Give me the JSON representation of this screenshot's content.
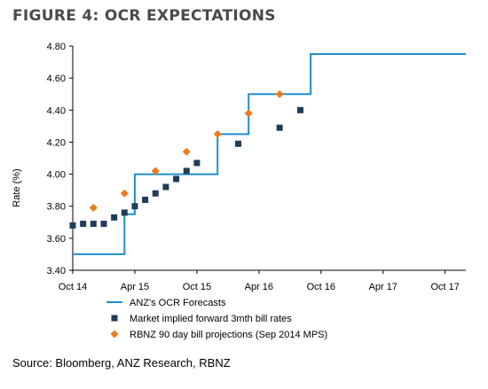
{
  "figure_title": "FIGURE 4: OCR EXPECTATIONS",
  "source": "Source: Bloomberg, ANZ Research, RBNZ",
  "colors": {
    "ocr": "#1f8ed0",
    "market": "#1f3c5a",
    "rbnz": "#e87c1e",
    "axis": "#000000"
  },
  "chart_data": {
    "type": "line",
    "title": "",
    "xlabel": "",
    "ylabel": "Rate (%)",
    "ylim": [
      3.4,
      4.8
    ],
    "yticks": [
      "3.40",
      "3.60",
      "3.80",
      "4.00",
      "4.20",
      "4.40",
      "4.60",
      "4.80"
    ],
    "xlim": [
      "2014-10",
      "2017-12"
    ],
    "xticks": [
      {
        "date": "2014-10",
        "label": "Oct 14"
      },
      {
        "date": "2015-04",
        "label": "Apr 15"
      },
      {
        "date": "2015-10",
        "label": "Oct 15"
      },
      {
        "date": "2016-04",
        "label": "Apr 16"
      },
      {
        "date": "2016-10",
        "label": "Oct 16"
      },
      {
        "date": "2017-04",
        "label": "Apr 17"
      },
      {
        "date": "2017-10",
        "label": "Oct 17"
      }
    ],
    "grid": false,
    "legend_position": "bottom",
    "series": [
      {
        "name": "ANZ's OCR Forecasts",
        "kind": "step",
        "points": [
          [
            "2014-10",
            3.5
          ],
          [
            "2015-03",
            3.5
          ],
          [
            "2015-03",
            3.75
          ],
          [
            "2015-04",
            3.75
          ],
          [
            "2015-04",
            4.0
          ],
          [
            "2015-12",
            4.0
          ],
          [
            "2015-12",
            4.25
          ],
          [
            "2016-03",
            4.25
          ],
          [
            "2016-03",
            4.5
          ],
          [
            "2016-09",
            4.5
          ],
          [
            "2016-09",
            4.75
          ],
          [
            "2017-12",
            4.75
          ]
        ]
      },
      {
        "name": "Market implied forward 3mth bill rates",
        "kind": "square",
        "points": [
          [
            "2014-10",
            3.68
          ],
          [
            "2014-11",
            3.69
          ],
          [
            "2014-12",
            3.69
          ],
          [
            "2015-01",
            3.69
          ],
          [
            "2015-02",
            3.73
          ],
          [
            "2015-03",
            3.76
          ],
          [
            "2015-04",
            3.8
          ],
          [
            "2015-05",
            3.84
          ],
          [
            "2015-06",
            3.88
          ],
          [
            "2015-07",
            3.92
          ],
          [
            "2015-08",
            3.97
          ],
          [
            "2015-09",
            4.02
          ],
          [
            "2015-10",
            4.07
          ],
          [
            "2016-02",
            4.19
          ],
          [
            "2016-06",
            4.29
          ],
          [
            "2016-08",
            4.4
          ]
        ]
      },
      {
        "name": "RBNZ 90 day bill projections (Sep 2014 MPS)",
        "kind": "diamond",
        "points": [
          [
            "2014-12",
            3.79
          ],
          [
            "2015-03",
            3.88
          ],
          [
            "2015-06",
            4.02
          ],
          [
            "2015-09",
            4.14
          ],
          [
            "2015-12",
            4.25
          ],
          [
            "2016-03",
            4.38
          ],
          [
            "2016-06",
            4.5
          ]
        ]
      }
    ]
  }
}
